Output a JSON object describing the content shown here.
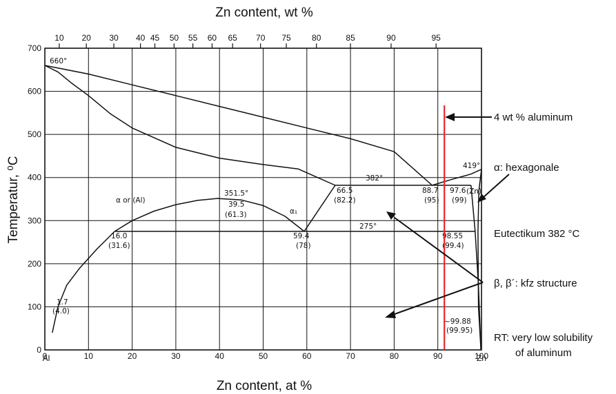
{
  "title_top": "Zn content, wt %",
  "title_bottom": "Zn content, at %",
  "ylabel": "Temperatur, ⁰C",
  "xlim": [
    0,
    100
  ],
  "ylim": [
    0,
    700
  ],
  "x_ticks": [
    "0",
    "10",
    "20",
    "30",
    "40",
    "50",
    "60",
    "70",
    "80",
    "90",
    "100"
  ],
  "y_ticks": [
    "0",
    "100",
    "200",
    "300",
    "400",
    "500",
    "600",
    "700"
  ],
  "x_end_labels": {
    "left": "Al",
    "right": "Zn"
  },
  "wt_ticks": [
    {
      "label": "10",
      "at": 3.3
    },
    {
      "label": "20",
      "at": 9.5
    },
    {
      "label": "30",
      "at": 15.8
    },
    {
      "label": "40",
      "at": 21.9
    },
    {
      "label": "45",
      "at": 25.2
    },
    {
      "label": "50",
      "at": 29.6
    },
    {
      "label": "55",
      "at": 33.9
    },
    {
      "label": "60",
      "at": 38.3
    },
    {
      "label": "65",
      "at": 43.0
    },
    {
      "label": "70",
      "at": 49.4
    },
    {
      "label": "75",
      "at": 55.3
    },
    {
      "label": "80",
      "at": 62.2
    },
    {
      "label": "85",
      "at": 70.0
    },
    {
      "label": "90",
      "at": 79.3
    },
    {
      "label": "95",
      "at": 89.6
    }
  ],
  "diagram_labels": {
    "al_melting": "660°",
    "zn_melting": "419°",
    "monotectoid_peak": "351.5°",
    "peak_at": "39.5",
    "peak_wt": "(61.3)",
    "eutectic_temp": "382°",
    "eutectoid_temp": "275°",
    "alpha_al": "α or (Al)",
    "alpha1": "α₁",
    "p_665": "66.5",
    "p_665_wt": "(82.2)",
    "p_887": "88.7",
    "p_887_wt": "(95)",
    "p_976": "97.6",
    "p_976_wt": "(99)",
    "zn_phase": "(Zn)",
    "p_160": "16.0",
    "p_160_wt": "(31.6)",
    "p_594": "59.4",
    "p_594_wt": "(78)",
    "p_9855": "98.55",
    "p_9855_wt": "(99.4)",
    "p_17": "1.7",
    "p_17_wt": "(4.0)",
    "p_9988": "~99.88",
    "p_9988_wt": "(99.95)"
  },
  "annotations": {
    "aluminum_line": "4 wt % aluminum",
    "hexagonal": "α: hexagonale",
    "eutectic": "Eutectikum 382 °C",
    "kfz": "β, β´: kfz structure",
    "rt_line1": "RT: very low solubility",
    "rt_line2": "of aluminum"
  },
  "marker_x_at": 91.5,
  "colors": {
    "marker": "#e8262a",
    "ink": "#111111"
  },
  "curves": {
    "liquidus": [
      [
        0,
        660
      ],
      [
        3,
        645
      ],
      [
        6,
        620
      ],
      [
        10,
        590
      ],
      [
        15,
        548
      ],
      [
        20,
        515
      ],
      [
        30,
        470
      ],
      [
        40,
        445
      ],
      [
        50,
        430
      ],
      [
        58,
        420
      ],
      [
        66.5,
        382
      ]
    ],
    "solidus_al": [
      [
        0,
        660
      ],
      [
        10,
        640
      ],
      [
        20,
        615
      ],
      [
        30,
        590
      ],
      [
        40,
        565
      ],
      [
        50,
        540
      ],
      [
        60,
        515
      ],
      [
        70,
        490
      ],
      [
        80,
        460
      ],
      [
        88.7,
        382
      ]
    ],
    "liquidus_zn": [
      [
        88.7,
        382
      ],
      [
        93,
        395
      ],
      [
        97.6,
        408
      ],
      [
        100,
        419
      ]
    ],
    "miscibility_dome": [
      [
        16.0,
        275
      ],
      [
        20,
        300
      ],
      [
        25,
        322
      ],
      [
        30,
        337
      ],
      [
        35,
        347
      ],
      [
        39.5,
        351.5
      ],
      [
        45,
        348
      ],
      [
        50,
        335
      ],
      [
        55,
        310
      ],
      [
        59.4,
        275
      ]
    ],
    "solvus_al": [
      [
        1.7,
        40
      ],
      [
        3,
        100
      ],
      [
        5,
        150
      ],
      [
        8,
        190
      ],
      [
        12,
        235
      ],
      [
        16.0,
        275
      ]
    ],
    "alpha1_right": [
      [
        59.4,
        275
      ],
      [
        66.5,
        382
      ]
    ],
    "zn_solvus": [
      [
        97.6,
        382
      ],
      [
        98.55,
        275
      ],
      [
        99.3,
        150
      ],
      [
        99.88,
        0
      ]
    ],
    "zn_solvus_right": [
      [
        100,
        419
      ],
      [
        99.4,
        370
      ],
      [
        99.2,
        275
      ],
      [
        99.3,
        100
      ],
      [
        99.88,
        0
      ]
    ],
    "eutectic_line": [
      [
        66.5,
        382
      ],
      [
        97.6,
        382
      ]
    ],
    "eutectoid_line": [
      [
        16.0,
        275
      ],
      [
        98.55,
        275
      ]
    ]
  }
}
